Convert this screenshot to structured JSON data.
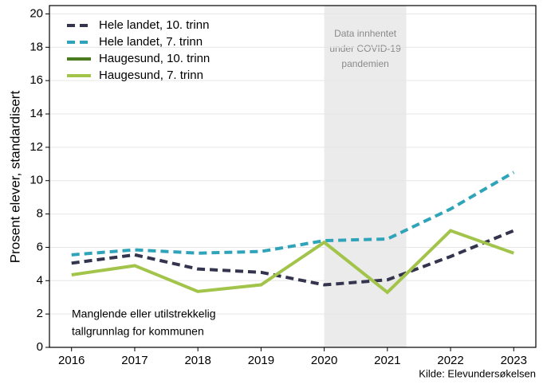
{
  "chart_data": {
    "type": "line",
    "ylabel": "Prosent elever, standardisert",
    "x": [
      2016,
      2017,
      2018,
      2019,
      2020,
      2021,
      2022,
      2023
    ],
    "xlim": [
      2015.65,
      2023.35
    ],
    "xticks": [
      2016,
      2017,
      2018,
      2019,
      2020,
      2021,
      2022,
      2023
    ],
    "ylim": [
      0,
      20.5
    ],
    "yticks": [
      0,
      2,
      4,
      6,
      8,
      10,
      12,
      14,
      16,
      18,
      20
    ],
    "grid": true,
    "legend": "upper left",
    "series": [
      {
        "name": "Hele landet, 10. trinn",
        "color": "#34344e",
        "dashed": true,
        "values": [
          5.05,
          5.55,
          4.7,
          4.5,
          3.75,
          4.05,
          5.45,
          7.0
        ]
      },
      {
        "name": "Hele landet, 7. trinn",
        "color": "#2fa4b9",
        "dashed": true,
        "values": [
          5.55,
          5.85,
          5.65,
          5.75,
          6.4,
          6.5,
          8.3,
          10.5
        ]
      },
      {
        "name": "Haugesund, 10. trinn",
        "color": "#4a7c1f",
        "dashed": false,
        "values": [
          null,
          null,
          null,
          null,
          null,
          null,
          null,
          null
        ]
      },
      {
        "name": "Haugesund, 7. trinn",
        "color": "#a3c44a",
        "dashed": false,
        "values": [
          4.35,
          4.9,
          3.35,
          3.75,
          6.3,
          3.3,
          7.0,
          5.65
        ]
      }
    ],
    "shaded_span": {
      "x": [
        2020,
        2021.3
      ],
      "color": "#ebebeb",
      "lines": [
        "Data innhentet",
        "under COVID-19",
        "pandemien"
      ]
    },
    "note": [
      "Manglende eller utilstrekkelig",
      "tallgrunnlag for kommunen"
    ],
    "source": "Kilde: Elevundersøkelsen"
  }
}
